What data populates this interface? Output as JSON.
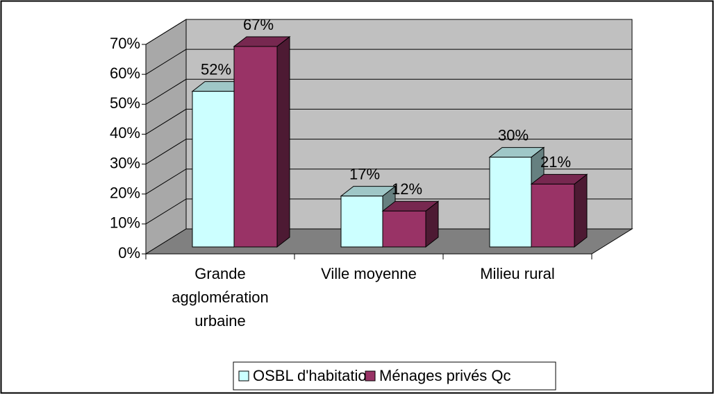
{
  "chart_data": {
    "type": "bar",
    "three_d": true,
    "categories": [
      "Grande agglomération urbaine",
      "Ville moyenne",
      "Milieu rural"
    ],
    "series": [
      {
        "name": "OSBL d'habitation",
        "color": "#ccffff",
        "values": [
          52,
          17,
          30
        ],
        "value_labels": [
          "52%",
          "17%",
          "30%"
        ]
      },
      {
        "name": "Ménages privés Qc",
        "color": "#993366",
        "values": [
          67,
          12,
          21
        ],
        "value_labels": [
          "67%",
          "12%",
          "21%"
        ]
      }
    ],
    "ylim": [
      0,
      70
    ],
    "yticks": [
      {
        "value": 0,
        "label": "0%"
      },
      {
        "value": 10,
        "label": "10%"
      },
      {
        "value": 20,
        "label": "20%"
      },
      {
        "value": 30,
        "label": "30%"
      },
      {
        "value": 40,
        "label": "40%"
      },
      {
        "value": 50,
        "label": "50%"
      },
      {
        "value": 60,
        "label": "60%"
      },
      {
        "value": 70,
        "label": "70%"
      }
    ],
    "grid": true,
    "legend": "bottom"
  }
}
